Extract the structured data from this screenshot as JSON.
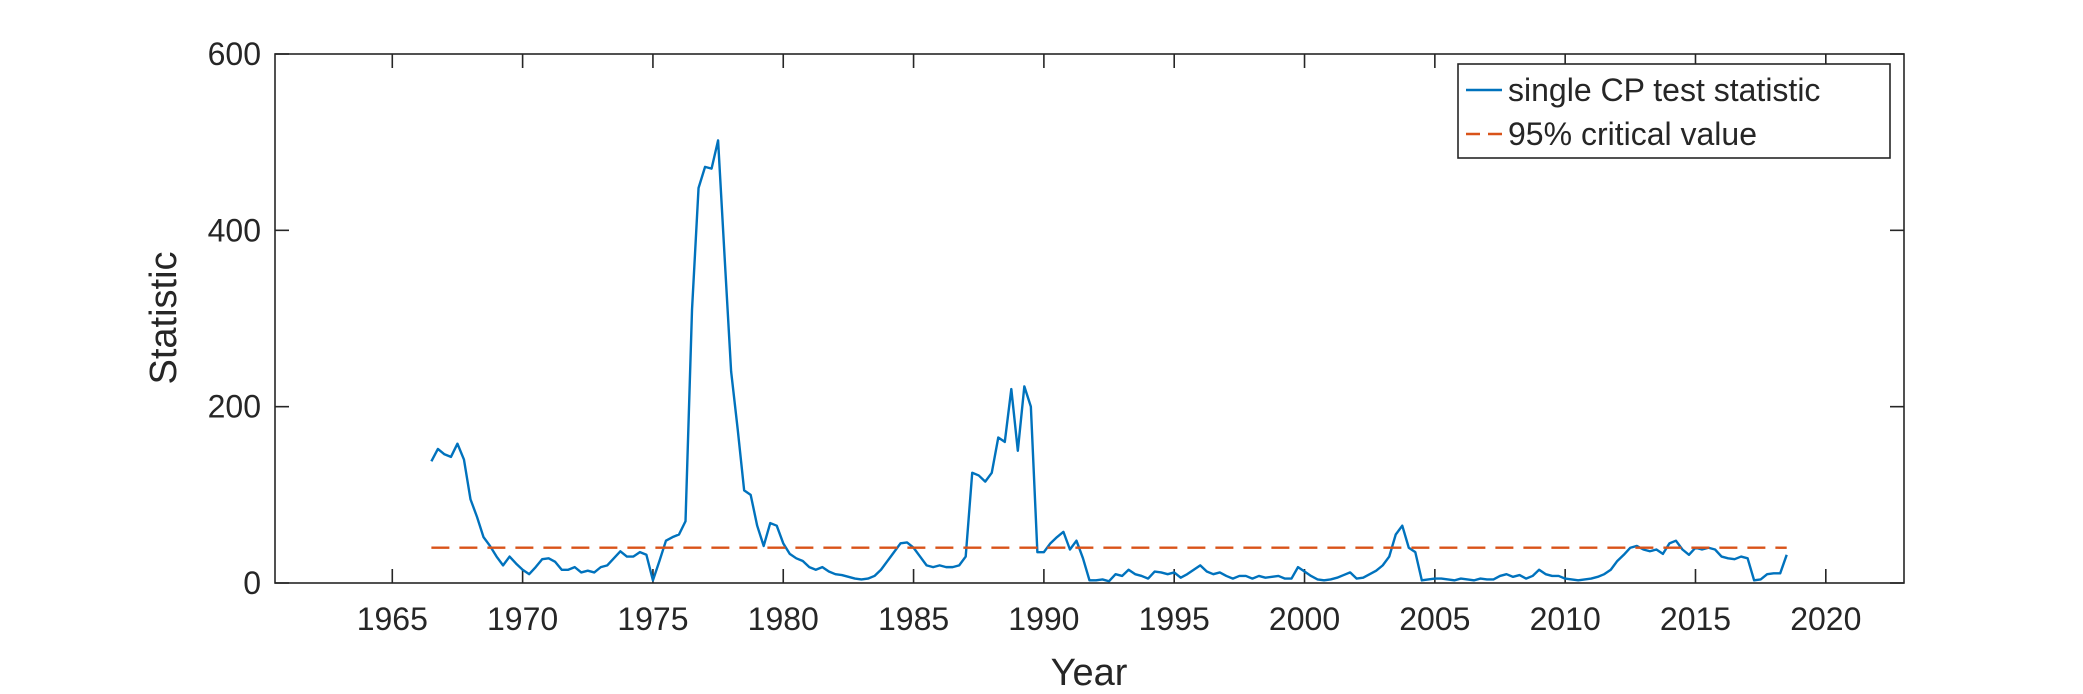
{
  "chart_data": {
    "type": "line",
    "title": "",
    "xlabel": "Year",
    "ylabel": "Statistic",
    "xlim": [
      1960.5,
      2023
    ],
    "ylim": [
      0,
      600
    ],
    "xticks": [
      1965,
      1970,
      1975,
      1980,
      1985,
      1990,
      1995,
      2000,
      2005,
      2010,
      2015,
      2020
    ],
    "yticks": [
      0,
      200,
      400,
      600
    ],
    "grid": false,
    "legend": {
      "position": "top-right",
      "boxed": true
    },
    "colors": {
      "series": "#0072bd",
      "critical": "#d95319",
      "axes": "#262626"
    },
    "series": [
      {
        "name": "single CP test statistic",
        "style": "solid",
        "points": [
          [
            1966.5,
            138
          ],
          [
            1966.75,
            152
          ],
          [
            1967.0,
            146
          ],
          [
            1967.25,
            143
          ],
          [
            1967.5,
            158
          ],
          [
            1967.75,
            140
          ],
          [
            1968.0,
            95
          ],
          [
            1968.25,
            75
          ],
          [
            1968.5,
            52
          ],
          [
            1968.75,
            42
          ],
          [
            1969.0,
            30
          ],
          [
            1969.25,
            20
          ],
          [
            1969.5,
            30
          ],
          [
            1969.75,
            22
          ],
          [
            1970.0,
            15
          ],
          [
            1970.25,
            10
          ],
          [
            1970.5,
            18
          ],
          [
            1970.75,
            27
          ],
          [
            1971.0,
            28
          ],
          [
            1971.25,
            24
          ],
          [
            1971.5,
            15
          ],
          [
            1971.75,
            15
          ],
          [
            1972.0,
            18
          ],
          [
            1972.25,
            12
          ],
          [
            1972.5,
            14
          ],
          [
            1972.75,
            12
          ],
          [
            1973.0,
            18
          ],
          [
            1973.25,
            20
          ],
          [
            1973.5,
            28
          ],
          [
            1973.75,
            36
          ],
          [
            1974.0,
            30
          ],
          [
            1974.25,
            30
          ],
          [
            1974.5,
            35
          ],
          [
            1974.75,
            32
          ],
          [
            1975.0,
            3
          ],
          [
            1975.25,
            25
          ],
          [
            1975.5,
            48
          ],
          [
            1975.75,
            52
          ],
          [
            1976.0,
            55
          ],
          [
            1976.25,
            70
          ],
          [
            1976.5,
            310
          ],
          [
            1976.75,
            448
          ],
          [
            1977.0,
            472
          ],
          [
            1977.25,
            470
          ],
          [
            1977.5,
            502
          ],
          [
            1977.75,
            370
          ],
          [
            1978.0,
            240
          ],
          [
            1978.25,
            175
          ],
          [
            1978.5,
            105
          ],
          [
            1978.75,
            100
          ],
          [
            1979.0,
            65
          ],
          [
            1979.25,
            42
          ],
          [
            1979.5,
            68
          ],
          [
            1979.75,
            65
          ],
          [
            1980.0,
            45
          ],
          [
            1980.25,
            33
          ],
          [
            1980.5,
            28
          ],
          [
            1980.75,
            25
          ],
          [
            1981.0,
            18
          ],
          [
            1981.25,
            15
          ],
          [
            1981.5,
            18
          ],
          [
            1981.75,
            13
          ],
          [
            1982.0,
            10
          ],
          [
            1982.25,
            9
          ],
          [
            1982.5,
            7
          ],
          [
            1982.75,
            5
          ],
          [
            1983.0,
            4
          ],
          [
            1983.25,
            5
          ],
          [
            1983.5,
            8
          ],
          [
            1983.75,
            15
          ],
          [
            1984.0,
            25
          ],
          [
            1984.25,
            35
          ],
          [
            1984.5,
            45
          ],
          [
            1984.75,
            46
          ],
          [
            1985.0,
            40
          ],
          [
            1985.25,
            30
          ],
          [
            1985.5,
            20
          ],
          [
            1985.75,
            18
          ],
          [
            1986.0,
            20
          ],
          [
            1986.25,
            18
          ],
          [
            1986.5,
            18
          ],
          [
            1986.75,
            20
          ],
          [
            1987.0,
            30
          ],
          [
            1987.25,
            125
          ],
          [
            1987.5,
            122
          ],
          [
            1987.75,
            115
          ],
          [
            1988.0,
            125
          ],
          [
            1988.25,
            165
          ],
          [
            1988.5,
            160
          ],
          [
            1988.75,
            220
          ],
          [
            1989.0,
            150
          ],
          [
            1989.25,
            223
          ],
          [
            1989.5,
            200
          ],
          [
            1989.75,
            35
          ],
          [
            1990.0,
            35
          ],
          [
            1990.25,
            45
          ],
          [
            1990.5,
            52
          ],
          [
            1990.75,
            58
          ],
          [
            1991.0,
            38
          ],
          [
            1991.25,
            48
          ],
          [
            1991.5,
            28
          ],
          [
            1991.75,
            3
          ],
          [
            1992.0,
            3
          ],
          [
            1992.25,
            4
          ],
          [
            1992.5,
            2
          ],
          [
            1992.75,
            10
          ],
          [
            1993.0,
            8
          ],
          [
            1993.25,
            15
          ],
          [
            1993.5,
            10
          ],
          [
            1993.75,
            8
          ],
          [
            1994.0,
            5
          ],
          [
            1994.25,
            13
          ],
          [
            1994.5,
            12
          ],
          [
            1994.75,
            10
          ],
          [
            1995.0,
            12
          ],
          [
            1995.25,
            6
          ],
          [
            1995.5,
            10
          ],
          [
            1995.75,
            15
          ],
          [
            1996.0,
            20
          ],
          [
            1996.25,
            13
          ],
          [
            1996.5,
            10
          ],
          [
            1996.75,
            12
          ],
          [
            1997.0,
            8
          ],
          [
            1997.25,
            5
          ],
          [
            1997.5,
            8
          ],
          [
            1997.75,
            8
          ],
          [
            1998.0,
            5
          ],
          [
            1998.25,
            8
          ],
          [
            1998.5,
            6
          ],
          [
            1998.75,
            7
          ],
          [
            1999.0,
            8
          ],
          [
            1999.25,
            5
          ],
          [
            1999.5,
            5
          ],
          [
            1999.75,
            18
          ],
          [
            2000.0,
            13
          ],
          [
            2000.25,
            8
          ],
          [
            2000.5,
            4
          ],
          [
            2000.75,
            3
          ],
          [
            2001.0,
            4
          ],
          [
            2001.25,
            6
          ],
          [
            2001.5,
            9
          ],
          [
            2001.75,
            12
          ],
          [
            2002.0,
            5
          ],
          [
            2002.25,
            6
          ],
          [
            2002.5,
            10
          ],
          [
            2002.75,
            14
          ],
          [
            2003.0,
            20
          ],
          [
            2003.25,
            30
          ],
          [
            2003.5,
            55
          ],
          [
            2003.75,
            65
          ],
          [
            2004.0,
            40
          ],
          [
            2004.25,
            35
          ],
          [
            2004.5,
            3
          ],
          [
            2004.75,
            4
          ],
          [
            2005.0,
            5
          ],
          [
            2005.25,
            5
          ],
          [
            2005.5,
            4
          ],
          [
            2005.75,
            3
          ],
          [
            2006.0,
            5
          ],
          [
            2006.25,
            4
          ],
          [
            2006.5,
            3
          ],
          [
            2006.75,
            5
          ],
          [
            2007.0,
            4
          ],
          [
            2007.25,
            4
          ],
          [
            2007.5,
            8
          ],
          [
            2007.75,
            10
          ],
          [
            2008.0,
            7
          ],
          [
            2008.25,
            9
          ],
          [
            2008.5,
            5
          ],
          [
            2008.75,
            8
          ],
          [
            2009.0,
            15
          ],
          [
            2009.25,
            10
          ],
          [
            2009.5,
            8
          ],
          [
            2009.75,
            8
          ],
          [
            2010.0,
            5
          ],
          [
            2010.25,
            4
          ],
          [
            2010.5,
            3
          ],
          [
            2010.75,
            4
          ],
          [
            2011.0,
            5
          ],
          [
            2011.25,
            7
          ],
          [
            2011.5,
            10
          ],
          [
            2011.75,
            15
          ],
          [
            2012.0,
            25
          ],
          [
            2012.25,
            32
          ],
          [
            2012.5,
            40
          ],
          [
            2012.75,
            42
          ],
          [
            2013.0,
            38
          ],
          [
            2013.25,
            36
          ],
          [
            2013.5,
            38
          ],
          [
            2013.75,
            33
          ],
          [
            2014.0,
            45
          ],
          [
            2014.25,
            48
          ],
          [
            2014.5,
            38
          ],
          [
            2014.75,
            32
          ],
          [
            2015.0,
            40
          ],
          [
            2015.25,
            38
          ],
          [
            2015.5,
            40
          ],
          [
            2015.75,
            38
          ],
          [
            2016.0,
            30
          ],
          [
            2016.25,
            28
          ],
          [
            2016.5,
            27
          ],
          [
            2016.75,
            30
          ],
          [
            2017.0,
            28
          ],
          [
            2017.25,
            3
          ],
          [
            2017.5,
            4
          ],
          [
            2017.75,
            10
          ],
          [
            2018.0,
            11
          ],
          [
            2018.25,
            11
          ],
          [
            2018.5,
            32
          ]
        ]
      },
      {
        "name": "95% critical value",
        "style": "dashed",
        "points": [
          [
            1966.5,
            40
          ],
          [
            2018.5,
            40
          ]
        ]
      }
    ]
  }
}
